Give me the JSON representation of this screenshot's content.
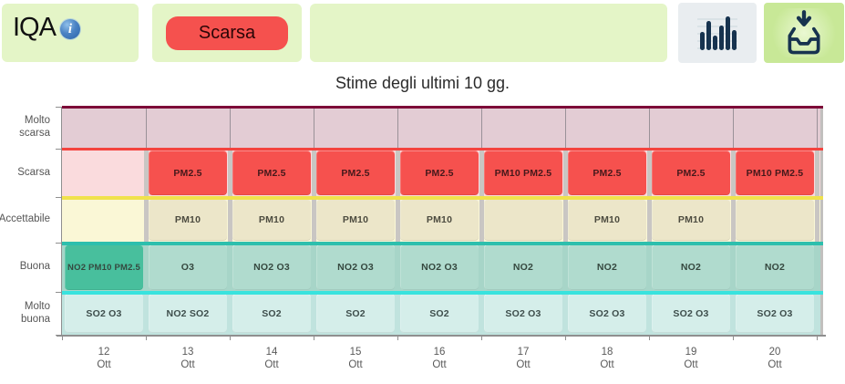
{
  "header": {
    "title": "IQA",
    "status_label": "Scarsa",
    "icons": {
      "info_glyph": "i"
    },
    "colors": {
      "panel_bg": "#E4F5C7",
      "badge_bg": "#F5514E",
      "badge_text": "#2B0506",
      "chart_btn_bg": "#E9EDF0",
      "download_btn_bg": "#C8E897",
      "icon_navy": "#17334F"
    }
  },
  "chart_title": "Stime degli ultimi 10 gg.",
  "chart_data": {
    "type": "heatmap",
    "title": "Stime degli ultimi 10 gg.",
    "month_label": "Ott",
    "x_labels": [
      "12",
      "13",
      "14",
      "15",
      "16",
      "17",
      "18",
      "19",
      "20"
    ],
    "y_labels": [
      "Molto scarsa",
      "Scarsa",
      "Accettabile",
      "Buona",
      "Molto buona"
    ],
    "levels": [
      {
        "key": "molto_scarsa",
        "label": "Molto scarsa",
        "band_color": "#E3CCD4",
        "line_color": "#7D0B38",
        "label_color": "#555555"
      },
      {
        "key": "scarsa",
        "label": "Scarsa",
        "band_color": "#FADBDD",
        "cell_color": "#F6514E",
        "line_color": "#F4433E",
        "label_color": "#45191B"
      },
      {
        "key": "accettabile",
        "label": "Accettabile",
        "band_color": "#FAF7D6",
        "cell_color": "#ECE6C9",
        "line_color": "#F0E24C",
        "label_color": "#4C4B3F"
      },
      {
        "key": "buona",
        "label": "Buona",
        "band_color": "#A7D5C8",
        "cell_color": "#B0DBCE",
        "highlight_color": "#48BF9D",
        "line_color": "#2DBFAD",
        "label_color": "#35483F"
      },
      {
        "key": "molto_buona",
        "label": "Molto buona",
        "band_color": "#C0E3DE",
        "cell_color": "#D5EEEA",
        "line_color": "#39E3DE",
        "label_color": "#3E4E4C"
      }
    ],
    "columns": [
      {
        "day": "12",
        "month": "Ott",
        "buona_highlight": true,
        "pollutants": {
          "scarsa": null,
          "accettabile": null,
          "buona": "NO2 PM10 PM2.5",
          "molto_buona": "SO2 O3"
        }
      },
      {
        "day": "13",
        "month": "Ott",
        "pollutants": {
          "scarsa": "PM2.5",
          "accettabile": "PM10",
          "buona": "O3",
          "molto_buona": "NO2 SO2"
        }
      },
      {
        "day": "14",
        "month": "Ott",
        "pollutants": {
          "scarsa": "PM2.5",
          "accettabile": "PM10",
          "buona": "NO2 O3",
          "molto_buona": "SO2"
        }
      },
      {
        "day": "15",
        "month": "Ott",
        "pollutants": {
          "scarsa": "PM2.5",
          "accettabile": "PM10",
          "buona": "NO2 O3",
          "molto_buona": "SO2"
        }
      },
      {
        "day": "16",
        "month": "Ott",
        "pollutants": {
          "scarsa": "PM2.5",
          "accettabile": "PM10",
          "buona": "NO2 O3",
          "molto_buona": "SO2"
        }
      },
      {
        "day": "17",
        "month": "Ott",
        "pollutants": {
          "scarsa": "PM10 PM2.5",
          "accettabile": "",
          "buona": "NO2",
          "molto_buona": "SO2 O3"
        }
      },
      {
        "day": "18",
        "month": "Ott",
        "pollutants": {
          "scarsa": "PM2.5",
          "accettabile": "PM10",
          "buona": "NO2",
          "molto_buona": "SO2 O3"
        }
      },
      {
        "day": "19",
        "month": "Ott",
        "pollutants": {
          "scarsa": "PM2.5",
          "accettabile": "PM10",
          "buona": "NO2",
          "molto_buona": "SO2 O3"
        }
      },
      {
        "day": "20",
        "month": "Ott",
        "pollutants": {
          "scarsa": "PM10 PM2.5",
          "accettabile": "",
          "buona": "NO2",
          "molto_buona": "SO2 O3"
        }
      }
    ]
  }
}
